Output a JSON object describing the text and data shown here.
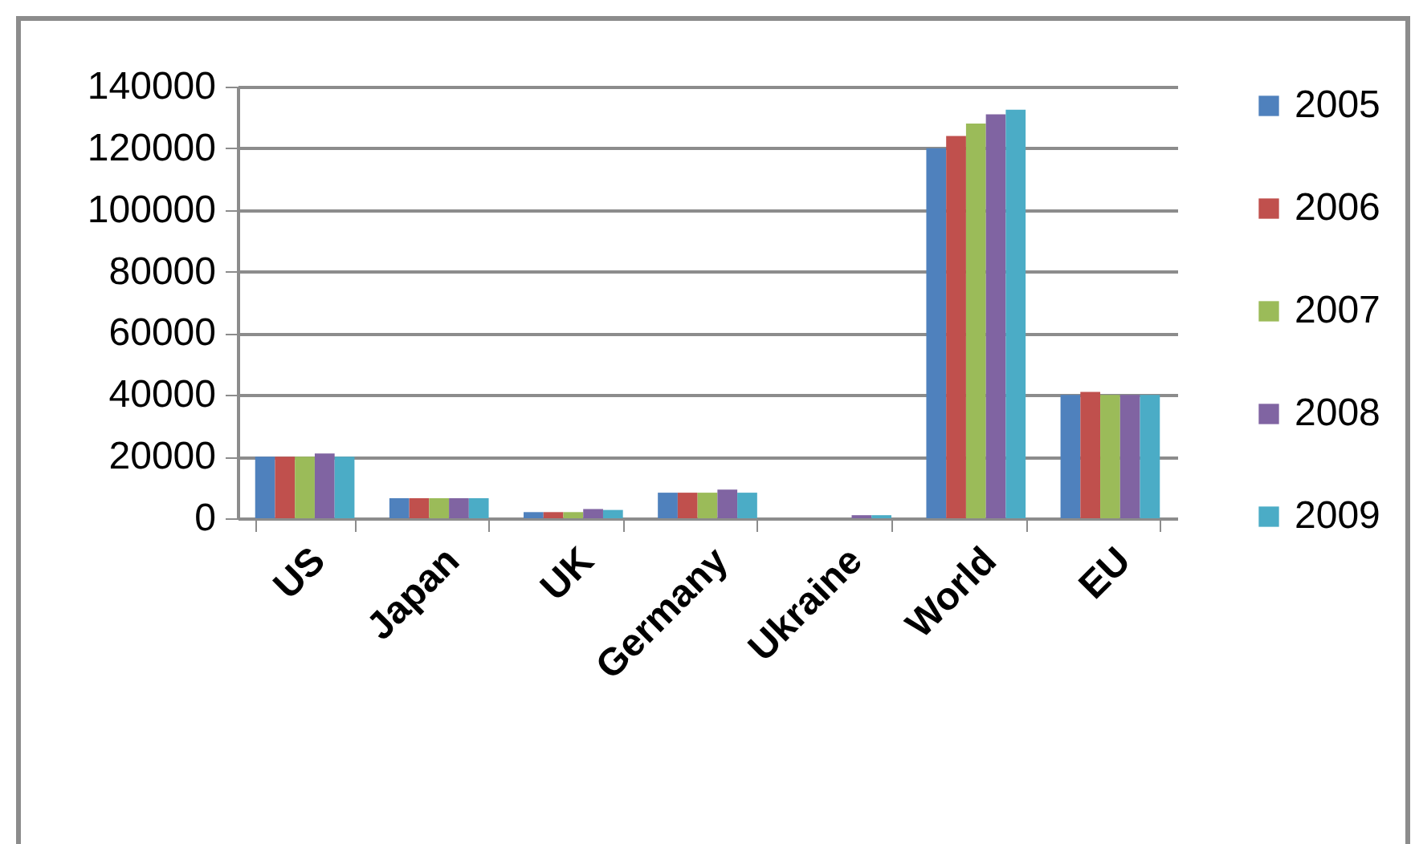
{
  "chart_data": {
    "type": "bar",
    "categories": [
      "US",
      "Japan",
      "UK",
      "Germany",
      "Ukraine",
      "World",
      "EU"
    ],
    "series": [
      {
        "name": "2005",
        "color": "#4f81bd",
        "values": [
          20000,
          6500,
          2000,
          8300,
          0,
          120000,
          40000
        ]
      },
      {
        "name": "2006",
        "color": "#c0504d",
        "values": [
          20000,
          6500,
          2000,
          8300,
          0,
          124000,
          41000
        ]
      },
      {
        "name": "2007",
        "color": "#9bbb59",
        "values": [
          20000,
          6500,
          2000,
          8300,
          0,
          128000,
          40000
        ]
      },
      {
        "name": "2008",
        "color": "#8064a2",
        "values": [
          21000,
          6500,
          3000,
          9300,
          1000,
          131000,
          40000
        ]
      },
      {
        "name": "2009",
        "color": "#4bacc6",
        "values": [
          20000,
          6500,
          2700,
          8300,
          1000,
          132500,
          40000
        ]
      }
    ],
    "ylim": [
      0,
      140000
    ],
    "yticks": [
      0,
      20000,
      40000,
      60000,
      80000,
      100000,
      120000,
      140000
    ],
    "grid": "y",
    "legend": "right"
  }
}
